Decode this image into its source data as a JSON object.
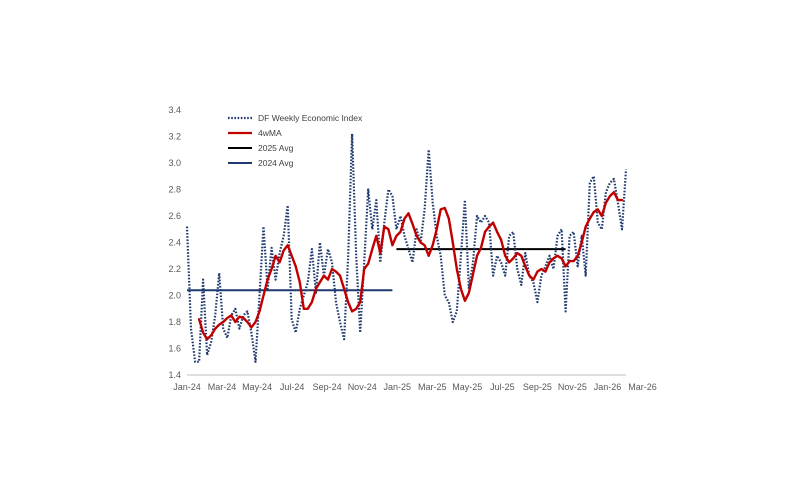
{
  "chart_data": {
    "type": "line",
    "title": "",
    "xlabel": "",
    "ylabel": "",
    "ylim": [
      1.4,
      3.4
    ],
    "yticks": [
      "1.4",
      "1.6",
      "1.8",
      "2.0",
      "2.2",
      "2.4",
      "2.6",
      "2.8",
      "3.0",
      "3.2",
      "3.4"
    ],
    "xticks": [
      "Jan-24",
      "Mar-24",
      "May-24",
      "Jul-24",
      "Sep-24",
      "Nov-24",
      "Jan-25",
      "Mar-25",
      "May-25",
      "Jul-25",
      "Sep-25",
      "Nov-25",
      "Jan-26",
      "Mar-26"
    ],
    "grid": false,
    "legend_position": "top-left",
    "colors": {
      "index": "#1f3a6e",
      "ma": "#c00000",
      "avg2025": "#000000",
      "avg2024": "#1f3a6e",
      "axis": "#bfbfbf"
    },
    "series": [
      {
        "name": "DF Weekly Economic Index",
        "style": "dotted",
        "values": [
          2.52,
          1.75,
          1.5,
          1.5,
          2.12,
          1.55,
          1.65,
          1.85,
          2.17,
          1.75,
          1.68,
          1.85,
          1.9,
          1.75,
          1.85,
          1.88,
          1.72,
          1.5,
          2.0,
          2.52,
          2.05,
          2.36,
          2.12,
          2.32,
          2.45,
          2.68,
          1.82,
          1.72,
          1.9,
          2.0,
          2.1,
          2.35,
          2.02,
          2.4,
          2.15,
          2.35,
          2.25,
          1.95,
          1.8,
          1.67,
          2.28,
          3.22,
          2.3,
          1.72,
          2.25,
          2.8,
          2.5,
          2.72,
          2.25,
          2.55,
          2.8,
          2.75,
          2.5,
          2.6,
          2.45,
          2.35,
          2.25,
          2.5,
          2.4,
          2.65,
          3.1,
          2.7,
          2.45,
          2.3,
          2.0,
          1.95,
          1.8,
          1.88,
          2.3,
          2.72,
          2.05,
          2.25,
          2.6,
          2.55,
          2.6,
          2.55,
          2.15,
          2.3,
          2.25,
          2.15,
          2.45,
          2.48,
          2.2,
          2.08,
          2.32,
          2.15,
          2.1,
          1.95,
          2.15,
          2.22,
          2.3,
          2.2,
          2.45,
          2.5,
          1.88,
          2.45,
          2.48,
          2.22,
          2.45,
          2.15,
          2.85,
          2.9,
          2.55,
          2.5,
          2.78,
          2.85,
          2.88,
          2.7,
          2.5,
          2.95
        ]
      },
      {
        "name": "4wMA",
        "style": "solid",
        "start_index": 3,
        "values": [
          1.82,
          1.72,
          1.67,
          1.7,
          1.75,
          1.78,
          1.8,
          1.83,
          1.85,
          1.8,
          1.84,
          1.83,
          1.8,
          1.76,
          1.8,
          1.88,
          2.0,
          2.12,
          2.2,
          2.3,
          2.25,
          2.34,
          2.38,
          2.3,
          2.22,
          2.1,
          1.9,
          1.9,
          1.95,
          2.05,
          2.1,
          2.15,
          2.12,
          2.2,
          2.18,
          2.15,
          2.05,
          1.95,
          1.88,
          1.9,
          1.95,
          2.2,
          2.24,
          2.35,
          2.45,
          2.32,
          2.52,
          2.5,
          2.38,
          2.45,
          2.48,
          2.58,
          2.62,
          2.54,
          2.45,
          2.4,
          2.38,
          2.3,
          2.38,
          2.5,
          2.65,
          2.66,
          2.58,
          2.4,
          2.2,
          2.05,
          1.96,
          2.02,
          2.16,
          2.3,
          2.36,
          2.48,
          2.52,
          2.55,
          2.48,
          2.42,
          2.3,
          2.25,
          2.28,
          2.32,
          2.3,
          2.22,
          2.15,
          2.12,
          2.18,
          2.2,
          2.18,
          2.25,
          2.28,
          2.3,
          2.28,
          2.22,
          2.26,
          2.26,
          2.3,
          2.4,
          2.52,
          2.58,
          2.63,
          2.65,
          2.6,
          2.7,
          2.75,
          2.78,
          2.72,
          2.72
        ]
      }
    ],
    "averages": [
      {
        "name": "2025 Avg",
        "value": 2.35,
        "from_index": 52,
        "to_index": 94
      },
      {
        "name": "2024 Avg",
        "value": 2.04,
        "from_index": 0,
        "to_index": 51
      }
    ],
    "legend": [
      "DF Weekly Economic Index",
      "4wMA",
      "2025 Avg",
      "2024 Avg"
    ]
  }
}
